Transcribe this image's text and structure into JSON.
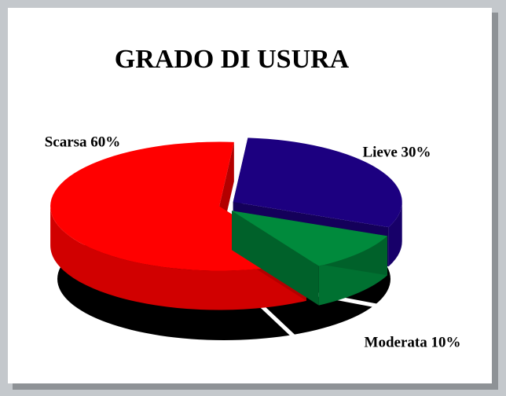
{
  "chart_data": {
    "type": "pie3d",
    "title": "GRADO DI USURA",
    "values": [
      30,
      10,
      60
    ],
    "value_labels": [
      "Lieve 30%",
      "Moderata 10%",
      "Scarsa 60%"
    ],
    "colors": [
      "#1c0080",
      "#008a3c",
      "#ff0000"
    ]
  }
}
